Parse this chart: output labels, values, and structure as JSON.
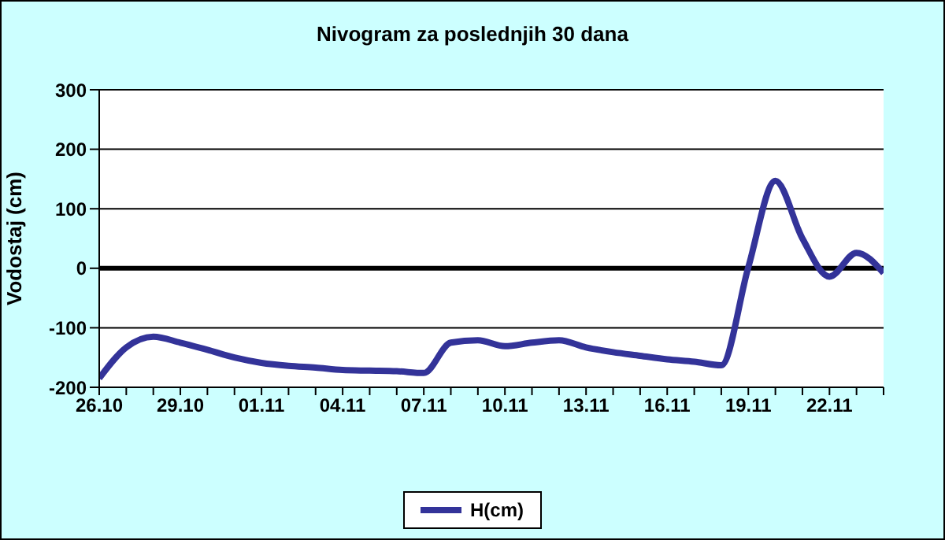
{
  "chart_data": {
    "type": "line",
    "title": "Nivogram za poslednjih 30 dana",
    "ylabel": "Vodostaj (cm)",
    "categories": [
      "26.10",
      null,
      null,
      "29.10",
      null,
      null,
      "01.11",
      null,
      null,
      "04.11",
      null,
      null,
      "07.11",
      null,
      null,
      "10.11",
      null,
      null,
      "13.11",
      null,
      null,
      "16.11",
      null,
      null,
      "19.11",
      null,
      null,
      "22.11",
      null,
      null
    ],
    "series": [
      {
        "name": "H(cm)",
        "color": "#333399",
        "values": [
          -185,
          -133,
          -115,
          -125,
          -137,
          -150,
          -159,
          -164,
          -167,
          -171,
          -172,
          -173,
          -176,
          -125,
          -121,
          -131,
          -125,
          -121,
          -133,
          -141,
          -147,
          -153,
          -157,
          -163,
          2,
          147,
          50,
          -14,
          26,
          -8
        ]
      }
    ],
    "ylim": [
      -200,
      300
    ],
    "yticks": [
      -200,
      -100,
      0,
      100,
      200,
      300
    ],
    "grid": "y",
    "legend": "bottom",
    "marker": "none",
    "line_style": "solid",
    "ref_lines": [
      {
        "axis": "y",
        "value": 0,
        "color": "#000000"
      }
    ]
  }
}
